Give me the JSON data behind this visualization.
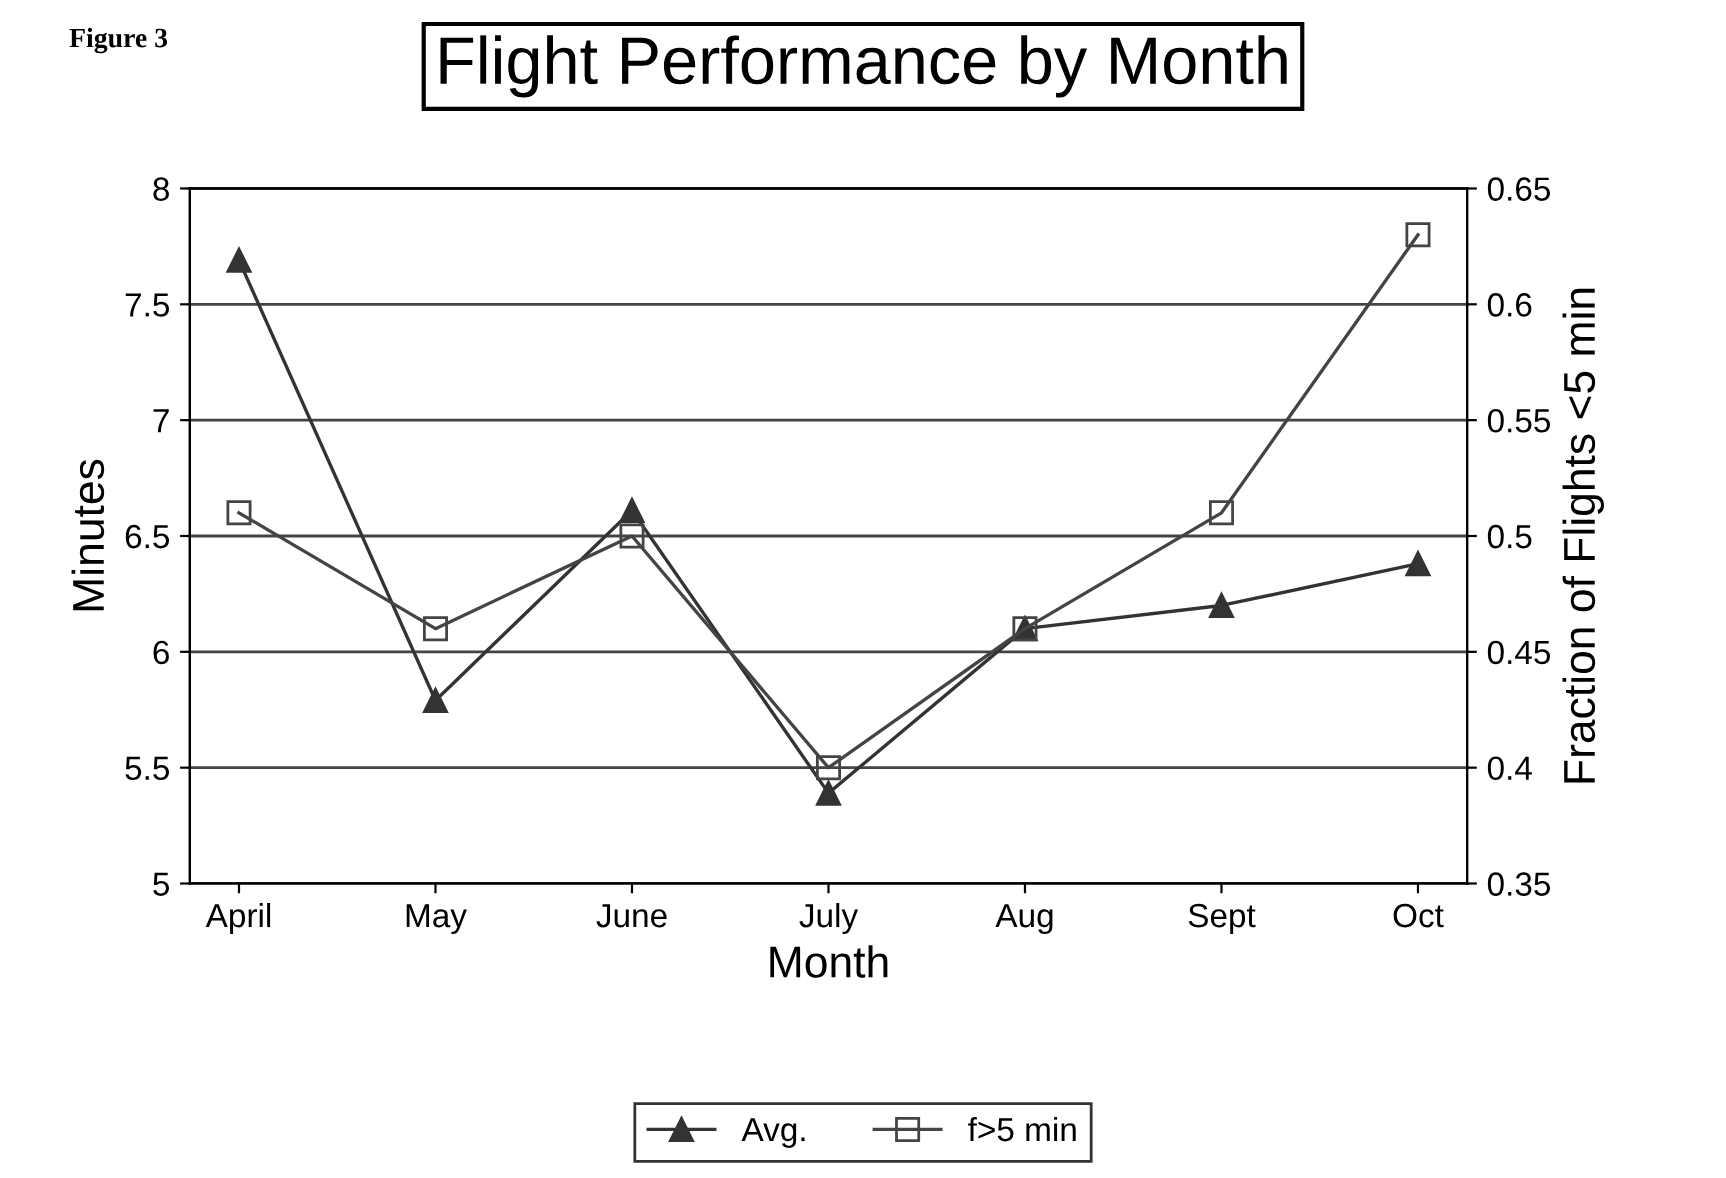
{
  "chart_data": {
    "type": "line",
    "title": "Flight Performance by Month",
    "xlabel": "Month",
    "ylabel": "Minutes",
    "y2label": "Fraction of Flights <5 min",
    "annotations": [
      "Figure 3"
    ],
    "categories": [
      "April",
      "May",
      "June",
      "July",
      "Aug",
      "Sept",
      "Oct"
    ],
    "series": [
      {
        "name": "Avg.",
        "color": "#333333",
        "marker": "triangle",
        "values": [
          7.69,
          5.79,
          6.61,
          5.39,
          6.1,
          6.2,
          6.38
        ]
      },
      {
        "name": "f>5 min",
        "color": "#444444",
        "marker": "square",
        "axis": "y2",
        "values": [
          0.51,
          0.46,
          0.5,
          0.4,
          0.46,
          0.51,
          0.63
        ]
      }
    ],
    "ylim": [
      5,
      8
    ],
    "yticks": [
      5,
      5.5,
      6,
      6.5,
      7,
      7.5,
      8
    ],
    "y2lim": [
      0.35,
      0.65
    ],
    "y2ticks": [
      0.35,
      0.4,
      0.45,
      0.5,
      0.55,
      0.6,
      0.65
    ],
    "grid": "y",
    "legend": "bottom",
    "line_style": "solid"
  }
}
